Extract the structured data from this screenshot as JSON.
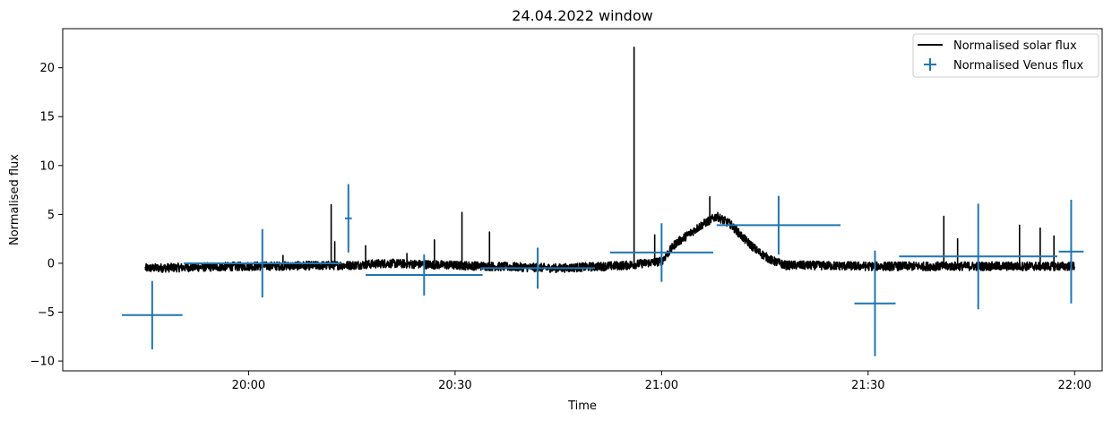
{
  "chart_data": {
    "type": "line",
    "title": "24.04.2022 window",
    "xlabel": "Time",
    "ylabel": "Normalised flux",
    "xlim": [
      "19:33",
      "22:04"
    ],
    "ylim": [
      -11,
      24
    ],
    "x_ticks": [
      "20:00",
      "20:30",
      "21:00",
      "21:30",
      "22:00"
    ],
    "y_ticks": [
      -10,
      -5,
      0,
      5,
      10,
      15,
      20
    ],
    "grid": false,
    "legend_position": "top-right",
    "colors": {
      "solar": "#000000",
      "venus": "#1f77b4"
    },
    "series": [
      {
        "name": "Normalised solar flux",
        "style": "line",
        "color": "#000000",
        "baseline": {
          "x": [
            "19:45",
            "20:00",
            "20:15",
            "20:20",
            "20:30",
            "20:45",
            "20:55",
            "21:00",
            "21:02",
            "21:04",
            "21:06",
            "21:08",
            "21:10",
            "21:12",
            "21:14",
            "21:16",
            "21:18",
            "21:20",
            "21:30",
            "21:45",
            "22:00"
          ],
          "y": [
            -0.5,
            -0.3,
            -0.2,
            0.0,
            -0.2,
            -0.5,
            -0.2,
            0.2,
            2.0,
            3.0,
            4.0,
            4.8,
            4.0,
            2.5,
            1.2,
            0.3,
            -0.2,
            -0.2,
            -0.3,
            -0.3,
            -0.3
          ]
        },
        "spikes": [
          {
            "x": "20:05",
            "y": 0.8
          },
          {
            "x": "20:12",
            "y": 6.0
          },
          {
            "x": "20:12.5",
            "y": 2.2
          },
          {
            "x": "20:17",
            "y": 1.8
          },
          {
            "x": "20:23",
            "y": 1.0
          },
          {
            "x": "20:27",
            "y": 2.4
          },
          {
            "x": "20:31",
            "y": 5.2
          },
          {
            "x": "20:35",
            "y": 3.2
          },
          {
            "x": "20:56",
            "y": 22.1
          },
          {
            "x": "20:59",
            "y": 2.9
          },
          {
            "x": "21:07",
            "y": 6.8
          },
          {
            "x": "21:41",
            "y": 4.8
          },
          {
            "x": "21:43",
            "y": 2.5
          },
          {
            "x": "21:52",
            "y": 3.9
          },
          {
            "x": "21:55",
            "y": 3.6
          },
          {
            "x": "21:57",
            "y": 2.8
          }
        ]
      },
      {
        "name": "Normalised Venus flux",
        "style": "errorbar",
        "color": "#1f77b4",
        "points": [
          {
            "x": "19:46",
            "y": -5.3,
            "xerr": [
              4.4,
              4.4
            ],
            "yerr": 3.5
          },
          {
            "x": "20:02",
            "y": 0.0,
            "xerr": [
              11.4,
              11.4
            ],
            "yerr": 3.5
          },
          {
            "x": "20:14.5",
            "y": 4.6,
            "xerr": [
              0.5,
              0.5
            ],
            "yerr": 3.5
          },
          {
            "x": "20:25.5",
            "y": -1.2,
            "xerr": [
              8.5,
              8.5
            ],
            "yerr": 2.1
          },
          {
            "x": "20:42",
            "y": -0.5,
            "xerr": [
              8.3,
              8.3
            ],
            "yerr": 2.1
          },
          {
            "x": "21:00",
            "y": 1.1,
            "xerr": [
              7.5,
              7.5
            ],
            "yerr": 3.0
          },
          {
            "x": "21:17",
            "y": 3.9,
            "xerr": [
              9.0,
              9.0
            ],
            "yerr": 3.0
          },
          {
            "x": "21:31",
            "y": -4.1,
            "xerr": [
              3.0,
              3.0
            ],
            "yerr": 5.4
          },
          {
            "x": "21:46",
            "y": 0.7,
            "xerr": [
              11.5,
              11.5
            ],
            "yerr": 5.4
          },
          {
            "x": "21:59.5",
            "y": 1.2,
            "xerr": [
              1.8,
              1.8
            ],
            "yerr": 5.3
          }
        ]
      }
    ]
  }
}
